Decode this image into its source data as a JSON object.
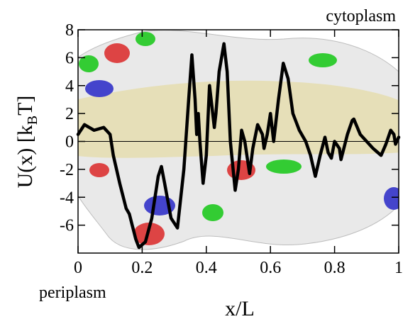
{
  "chart_data": {
    "type": "line",
    "ylabel": [
      "U(x) [k",
      "B",
      "T]"
    ],
    "xlabel": "x/L",
    "annotations": [
      "cytoplasm",
      "periplasm"
    ],
    "xlim": [
      0,
      1
    ],
    "xticks": [
      0,
      0.2,
      0.4,
      0.6,
      0.8,
      1
    ],
    "ylim": [
      -8,
      8
    ],
    "yticks": [
      -6,
      -4,
      -2,
      0,
      2,
      4,
      6,
      8
    ],
    "zero_line": true,
    "series": [
      {
        "color": "#000000",
        "x": [
          0,
          0.02,
          0.05,
          0.08,
          0.1,
          0.11,
          0.13,
          0.15,
          0.16,
          0.18,
          0.19,
          0.21,
          0.23,
          0.25,
          0.26,
          0.27,
          0.29,
          0.31,
          0.33,
          0.345,
          0.355,
          0.365,
          0.37,
          0.375,
          0.38,
          0.39,
          0.4,
          0.41,
          0.42,
          0.425,
          0.43,
          0.44,
          0.455,
          0.465,
          0.475,
          0.49,
          0.5,
          0.51,
          0.52,
          0.535,
          0.545,
          0.56,
          0.575,
          0.58,
          0.59,
          0.6,
          0.61,
          0.625,
          0.64,
          0.655,
          0.67,
          0.69,
          0.71,
          0.725,
          0.74,
          0.755,
          0.77,
          0.78,
          0.79,
          0.8,
          0.815,
          0.82,
          0.84,
          0.855,
          0.86,
          0.88,
          0.9,
          0.92,
          0.935,
          0.945,
          0.96,
          0.975,
          0.985,
          0.99,
          1.0
        ],
        "values": [
          0.5,
          1.2,
          0.8,
          1.0,
          0.5,
          -1,
          -3,
          -4.8,
          -5.2,
          -7,
          -7.6,
          -7.2,
          -5.5,
          -2.5,
          -1.8,
          -3,
          -5.5,
          -6.2,
          -2,
          3,
          6.2,
          3,
          0.5,
          2,
          0,
          -3,
          -1,
          4,
          2,
          1,
          2,
          5,
          7,
          5,
          0,
          -3.5,
          -2,
          0.8,
          0,
          -2.3,
          -0.5,
          1.2,
          0.5,
          -0.5,
          0.5,
          2,
          0,
          3,
          5.6,
          4.5,
          2,
          0.8,
          0,
          -1,
          -2.5,
          -1,
          0.3,
          -0.8,
          -1.2,
          0,
          -0.5,
          -1.3,
          0.5,
          1.5,
          1.6,
          0.5,
          0,
          -0.5,
          -0.8,
          -1,
          -0.2,
          0.8,
          0.5,
          -0.2,
          0.3
        ]
      }
    ]
  }
}
